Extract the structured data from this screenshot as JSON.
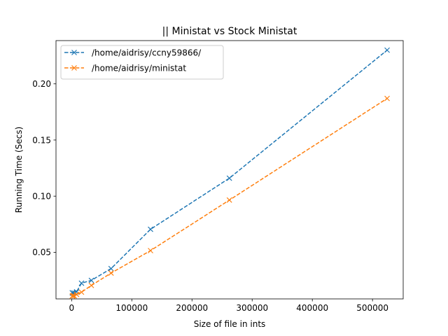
{
  "chart_data": {
    "type": "line",
    "title": "|| Ministat vs Stock Ministat",
    "xlabel": "Size of file in ints",
    "ylabel": "Running Time (Secs)",
    "xlim": [
      -26000,
      551000
    ],
    "ylim": [
      0.0085,
      0.2385
    ],
    "xticks": [
      0,
      100000,
      200000,
      300000,
      400000,
      500000
    ],
    "xtick_labels": [
      "0",
      "100000",
      "200000",
      "300000",
      "400000",
      "500000"
    ],
    "yticks": [
      0.05,
      0.1,
      0.15,
      0.2
    ],
    "ytick_labels": [
      "0.05",
      "0.10",
      "0.15",
      "0.20"
    ],
    "grid": false,
    "legend_position": "top-left",
    "series": [
      {
        "name": "/home/aidrisy/ccny59866/",
        "color": "#1f77b4",
        "linestyle": "dashed",
        "marker": "x",
        "x": [
          1024,
          2048,
          4096,
          8192,
          16384,
          32768,
          65536,
          131072,
          262144,
          524288
        ],
        "y": [
          0.014,
          0.0135,
          0.0138,
          0.0148,
          0.0225,
          0.025,
          0.0355,
          0.0705,
          0.116,
          0.23
        ]
      },
      {
        "name": "/home/aidrisy/ministat",
        "color": "#ff7f0e",
        "linestyle": "dashed",
        "marker": "x",
        "x": [
          1024,
          2048,
          4096,
          8192,
          16384,
          32768,
          65536,
          131072,
          262144,
          524288
        ],
        "y": [
          0.011,
          0.0115,
          0.0112,
          0.0125,
          0.0145,
          0.0205,
          0.0315,
          0.0515,
          0.0965,
          0.187
        ]
      }
    ]
  }
}
